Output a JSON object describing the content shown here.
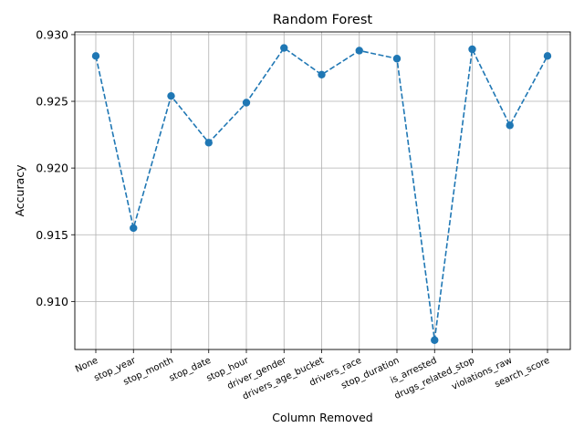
{
  "chart_data": {
    "type": "line",
    "title": "Random Forest",
    "xlabel": "Column Removed",
    "ylabel": "Accuracy",
    "categories": [
      "None",
      "stop_year",
      "stop_month",
      "stop_date",
      "stop_hour",
      "driver_gender",
      "drivers_age_bucket",
      "drivers_race",
      "stop_duration",
      "is_arrested",
      "drugs_related_stop",
      "violations_raw",
      "search_score"
    ],
    "series": [
      {
        "name": "Accuracy",
        "values": [
          0.9284,
          0.9155,
          0.9254,
          0.9219,
          0.9249,
          0.929,
          0.927,
          0.9288,
          0.9282,
          0.9071,
          0.9289,
          0.9232,
          0.9284
        ],
        "color": "#1f77b4",
        "linestyle": "dashed",
        "marker": "circle"
      }
    ],
    "ylim": [
      0.9064,
      0.9302
    ],
    "yticks": [
      0.91,
      0.915,
      0.92,
      0.925,
      0.93
    ],
    "ytick_labels": [
      "0.910",
      "0.915",
      "0.920",
      "0.925",
      "0.930"
    ],
    "grid": true
  }
}
